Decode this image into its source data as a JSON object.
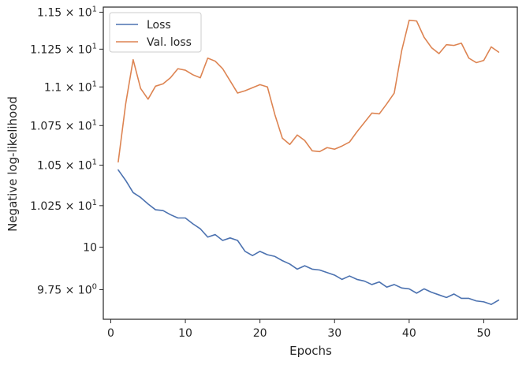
{
  "chart_data": {
    "type": "line",
    "xlabel": "Epochs",
    "ylabel": "Negative log-likelihood",
    "xlim": [
      -1,
      54.5
    ],
    "ylim": [
      9.58,
      11.535
    ],
    "yscale": "log",
    "grid": false,
    "legend_position": "top-left",
    "x_ticks": [
      {
        "value": 0,
        "label": "0"
      },
      {
        "value": 10,
        "label": "10"
      },
      {
        "value": 20,
        "label": "20"
      },
      {
        "value": 30,
        "label": "30"
      },
      {
        "value": 40,
        "label": "40"
      },
      {
        "value": 50,
        "label": "50"
      }
    ],
    "y_ticks": [
      {
        "value": 9.75,
        "mantissa": "9.75",
        "exp": "0"
      },
      {
        "value": 10,
        "mantissa": "10",
        "exp": ""
      },
      {
        "value": 10.25,
        "mantissa": "1.025",
        "exp": "1"
      },
      {
        "value": 10.5,
        "mantissa": "1.05",
        "exp": "1"
      },
      {
        "value": 10.75,
        "mantissa": "1.075",
        "exp": "1"
      },
      {
        "value": 11.0,
        "mantissa": "1.1",
        "exp": "1"
      },
      {
        "value": 11.25,
        "mantissa": "1.125",
        "exp": "1"
      },
      {
        "value": 11.5,
        "mantissa": "1.15",
        "exp": "1"
      }
    ],
    "x": [
      1,
      2,
      3,
      4,
      5,
      6,
      7,
      8,
      9,
      10,
      11,
      12,
      13,
      14,
      15,
      16,
      17,
      18,
      19,
      20,
      21,
      22,
      23,
      24,
      25,
      26,
      27,
      28,
      29,
      30,
      31,
      32,
      33,
      34,
      35,
      36,
      37,
      38,
      39,
      40,
      41,
      42,
      43,
      44,
      45,
      46,
      47,
      48,
      49,
      50,
      51,
      52
    ],
    "series": [
      {
        "name": "Loss",
        "color": "#4c72b0",
        "values": [
          10.47,
          10.405,
          10.33,
          10.3,
          10.26,
          10.225,
          10.22,
          10.195,
          10.175,
          10.175,
          10.14,
          10.11,
          10.06,
          10.075,
          10.04,
          10.055,
          10.04,
          9.975,
          9.95,
          9.975,
          9.955,
          9.945,
          9.92,
          9.9,
          9.87,
          9.89,
          9.87,
          9.865,
          9.85,
          9.835,
          9.81,
          9.83,
          9.81,
          9.8,
          9.78,
          9.795,
          9.765,
          9.78,
          9.76,
          9.755,
          9.73,
          9.755,
          9.735,
          9.72,
          9.705,
          9.725,
          9.7,
          9.7,
          9.685,
          9.68,
          9.665,
          9.69
        ]
      },
      {
        "name": "Val. loss",
        "color": "#dd8452",
        "values": [
          10.52,
          10.89,
          11.18,
          10.99,
          10.92,
          11.005,
          11.02,
          11.06,
          11.12,
          11.11,
          11.08,
          11.06,
          11.19,
          11.17,
          11.12,
          11.04,
          10.96,
          10.975,
          10.995,
          11.015,
          11.0,
          10.82,
          10.67,
          10.63,
          10.69,
          10.655,
          10.59,
          10.585,
          10.61,
          10.6,
          10.62,
          10.645,
          10.71,
          10.77,
          10.83,
          10.825,
          10.89,
          10.96,
          11.24,
          11.445,
          11.44,
          11.33,
          11.26,
          11.22,
          11.28,
          11.275,
          11.29,
          11.19,
          11.16,
          11.175,
          11.265,
          11.23
        ]
      }
    ]
  }
}
